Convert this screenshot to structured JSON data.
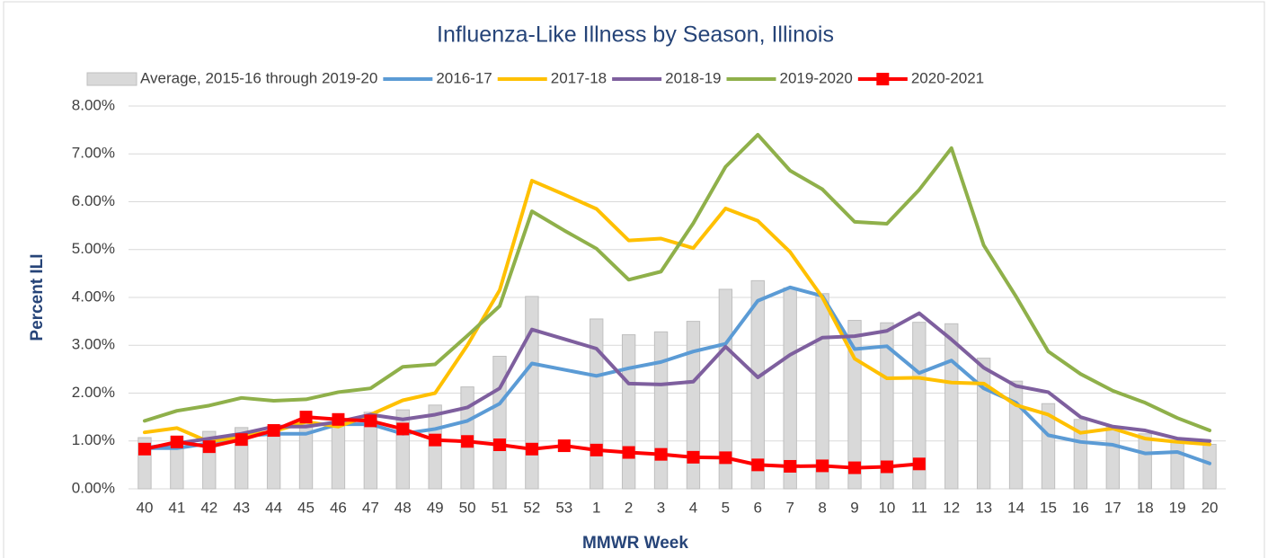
{
  "chart_data": {
    "type": "bar_line",
    "title": "Influenza-Like Illness by Season, Illinois",
    "x_label": "MMWR Week",
    "y_label": "Percent ILI",
    "categories": [
      "40",
      "41",
      "42",
      "43",
      "44",
      "45",
      "46",
      "47",
      "48",
      "49",
      "50",
      "51",
      "52",
      "53",
      "1",
      "2",
      "3",
      "4",
      "5",
      "6",
      "7",
      "8",
      "9",
      "10",
      "11",
      "12",
      "13",
      "14",
      "15",
      "16",
      "17",
      "18",
      "19",
      "20"
    ],
    "ylim": [
      0,
      8
    ],
    "yticks": [
      {
        "value": 0,
        "label": "0.00%"
      },
      {
        "value": 1,
        "label": "1.00%"
      },
      {
        "value": 2,
        "label": "2.00%"
      },
      {
        "value": 3,
        "label": "3.00%"
      },
      {
        "value": 4,
        "label": "4.00%"
      },
      {
        "value": 5,
        "label": "5.00%"
      },
      {
        "value": 6,
        "label": "6.00%"
      },
      {
        "value": 7,
        "label": "7.00%"
      },
      {
        "value": 8,
        "label": "8.00%"
      }
    ],
    "grid": true,
    "legend": "top",
    "series": [
      {
        "name": "Average, 2015-16 through 2019-20",
        "type": "bar",
        "color": "#d9d9d9",
        "values": [
          1.07,
          1.1,
          1.2,
          1.28,
          1.3,
          1.35,
          1.4,
          1.6,
          1.65,
          1.75,
          2.13,
          2.77,
          4.02,
          null,
          3.55,
          3.22,
          3.28,
          3.5,
          4.17,
          4.35,
          4.2,
          4.08,
          3.52,
          3.47,
          3.48,
          3.45,
          2.73,
          2.25,
          1.78,
          1.45,
          1.3,
          1.15,
          1.0,
          0.93
        ]
      },
      {
        "name": "2016-17",
        "type": "line",
        "color": "#5b9bd5",
        "values": [
          0.85,
          0.85,
          0.95,
          1.1,
          1.15,
          1.15,
          1.35,
          1.35,
          1.15,
          1.25,
          1.42,
          1.78,
          2.62,
          2.49,
          2.36,
          2.52,
          2.65,
          2.87,
          3.03,
          3.93,
          4.21,
          4.03,
          2.92,
          2.98,
          2.42,
          2.68,
          2.1,
          1.8,
          1.12,
          0.98,
          0.92,
          0.74,
          0.77,
          0.53
        ]
      },
      {
        "name": "2017-18",
        "type": "line",
        "color": "#ffc000",
        "values": [
          1.18,
          1.27,
          0.98,
          1.1,
          1.2,
          1.4,
          1.3,
          1.55,
          1.85,
          2.0,
          3.0,
          4.15,
          6.44,
          6.15,
          5.85,
          5.19,
          5.23,
          5.03,
          5.86,
          5.6,
          4.95,
          4.0,
          2.72,
          2.31,
          2.32,
          2.22,
          2.2,
          1.75,
          1.55,
          1.17,
          1.26,
          1.05,
          0.98,
          0.93
        ]
      },
      {
        "name": "2018-19",
        "type": "line",
        "color": "#7e5f9e",
        "values": [
          0.85,
          0.95,
          1.05,
          1.15,
          1.3,
          1.3,
          1.4,
          1.55,
          1.45,
          1.55,
          1.7,
          2.1,
          3.33,
          3.13,
          2.93,
          2.2,
          2.18,
          2.24,
          2.97,
          2.33,
          2.8,
          3.16,
          3.19,
          3.3,
          3.67,
          3.12,
          2.53,
          2.15,
          2.02,
          1.5,
          1.3,
          1.22,
          1.05,
          1.0
        ]
      },
      {
        "name": "2019-2020",
        "type": "line",
        "color": "#8fb04a",
        "values": [
          1.42,
          1.63,
          1.74,
          1.9,
          1.84,
          1.87,
          2.02,
          2.1,
          2.55,
          2.6,
          3.2,
          3.82,
          5.8,
          5.4,
          5.02,
          4.37,
          4.54,
          5.55,
          6.73,
          7.4,
          6.65,
          6.26,
          5.58,
          5.54,
          6.25,
          7.12,
          5.09,
          4.02,
          2.87,
          2.4,
          2.05,
          1.8,
          1.48,
          1.22
        ]
      },
      {
        "name": "2020-2021",
        "type": "line",
        "marker": "square",
        "color": "#ff0000",
        "values": [
          0.83,
          0.98,
          0.88,
          1.03,
          1.22,
          1.5,
          1.45,
          1.42,
          1.25,
          1.02,
          0.99,
          0.92,
          0.83,
          0.9,
          0.81,
          0.76,
          0.72,
          0.66,
          0.65,
          0.5,
          0.47,
          0.48,
          0.44,
          0.46,
          0.52,
          null,
          null,
          null,
          null,
          null,
          null,
          null,
          null,
          null
        ]
      }
    ]
  }
}
